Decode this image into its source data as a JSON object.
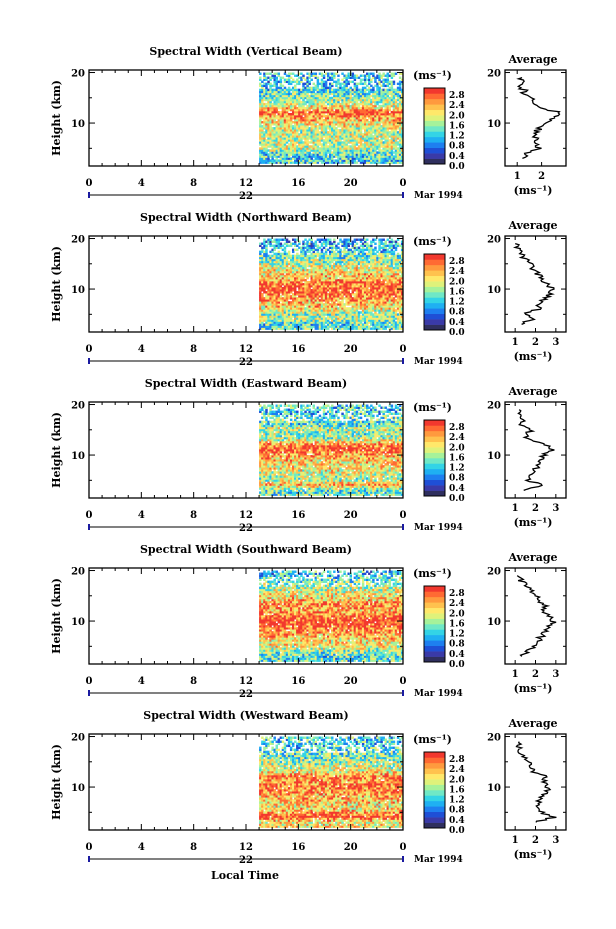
{
  "figure": {
    "xlabel": "Local Time",
    "date_label": "Mar 1994",
    "day_label": "22",
    "cbar_unit": "(ms⁻¹)",
    "avg_title": "Average",
    "avg_xlabel": "(ms⁻¹)"
  },
  "chart_data": [
    {
      "type": "heatmap",
      "title": "Spectral Width (Vertical Beam)",
      "ylabel": "Height (km)",
      "xlabel": "Local Time",
      "xlim": [
        0,
        24
      ],
      "ylim": [
        1.5,
        20.5
      ],
      "xticks": [
        "0",
        "4",
        "8",
        "12",
        "16",
        "20",
        "0"
      ],
      "yticks": [
        "20",
        "10"
      ],
      "data_start_hour": 13,
      "colorbar": {
        "label": "(ms⁻¹)",
        "ticks": [
          "2.8",
          "2.4",
          "2.0",
          "1.6",
          "1.2",
          "0.8",
          "0.4",
          "0.0"
        ],
        "range": [
          0.0,
          3.0
        ]
      },
      "average_profile": {
        "title": "Average",
        "xlabel": "(ms⁻¹)",
        "xlim": [
          0.5,
          3.0
        ],
        "xticks": [
          "1",
          "2"
        ],
        "height": [
          3,
          4,
          5,
          6,
          7,
          8,
          9,
          10,
          11,
          12,
          13,
          14,
          15,
          16,
          17,
          18,
          19
        ],
        "width": [
          1.2,
          1.4,
          1.9,
          1.7,
          1.8,
          1.7,
          1.9,
          2.1,
          2.4,
          2.8,
          2.0,
          1.7,
          1.5,
          1.3,
          1.2,
          1.1,
          1.2
        ]
      }
    },
    {
      "type": "heatmap",
      "title": "Spectral Width (Northward Beam)",
      "ylabel": "Height (km)",
      "xlabel": "Local Time",
      "xlim": [
        0,
        24
      ],
      "ylim": [
        1.5,
        20.5
      ],
      "xticks": [
        "0",
        "4",
        "8",
        "12",
        "16",
        "20",
        "0"
      ],
      "yticks": [
        "20",
        "10"
      ],
      "data_start_hour": 13,
      "colorbar": {
        "label": "(ms⁻¹)",
        "ticks": [
          "2.8",
          "2.4",
          "2.0",
          "1.6",
          "1.2",
          "0.8",
          "0.4",
          "0.0"
        ],
        "range": [
          0.0,
          3.0
        ]
      },
      "average_profile": {
        "title": "Average",
        "xlabel": "(ms⁻¹)",
        "xlim": [
          0.5,
          3.5
        ],
        "xticks": [
          "1",
          "2",
          "3"
        ],
        "height": [
          3,
          4,
          5,
          6,
          7,
          8,
          9,
          10,
          11,
          12,
          13,
          14,
          15,
          16,
          17,
          18,
          19
        ],
        "width": [
          1.3,
          1.8,
          1.5,
          2.1,
          2.2,
          2.4,
          2.7,
          2.8,
          2.6,
          2.3,
          2.1,
          1.9,
          1.7,
          1.5,
          1.3,
          1.1,
          1.0
        ]
      }
    },
    {
      "type": "heatmap",
      "title": "Spectral Width (Eastward Beam)",
      "ylabel": "Height (km)",
      "xlabel": "Local Time",
      "xlim": [
        0,
        24
      ],
      "ylim": [
        1.5,
        20.5
      ],
      "xticks": [
        "0",
        "4",
        "8",
        "12",
        "16",
        "20",
        "0"
      ],
      "yticks": [
        "20",
        "10"
      ],
      "data_start_hour": 13,
      "colorbar": {
        "label": "(ms⁻¹)",
        "ticks": [
          "2.8",
          "2.4",
          "2.0",
          "1.6",
          "1.2",
          "0.8",
          "0.4",
          "0.0"
        ],
        "range": [
          0.0,
          3.0
        ]
      },
      "average_profile": {
        "title": "Average",
        "xlabel": "(ms⁻¹)",
        "xlim": [
          0.5,
          3.5
        ],
        "xticks": [
          "1",
          "2",
          "3"
        ],
        "height": [
          3,
          4,
          5,
          6,
          7,
          8,
          9,
          10,
          11,
          12,
          13,
          14,
          15,
          16,
          17,
          18,
          19
        ],
        "width": [
          1.4,
          2.3,
          1.6,
          1.8,
          2.0,
          2.1,
          2.2,
          2.4,
          2.9,
          2.5,
          1.7,
          1.5,
          1.8,
          1.3,
          1.5,
          1.1,
          1.2
        ]
      }
    },
    {
      "type": "heatmap",
      "title": "Spectral Width (Southward Beam)",
      "ylabel": "Height (km)",
      "xlabel": "Local Time",
      "xlim": [
        0,
        24
      ],
      "ylim": [
        1.5,
        20.5
      ],
      "xticks": [
        "0",
        "4",
        "8",
        "12",
        "16",
        "20",
        "0"
      ],
      "yticks": [
        "20",
        "10"
      ],
      "data_start_hour": 13,
      "colorbar": {
        "label": "(ms⁻¹)",
        "ticks": [
          "2.8",
          "2.4",
          "2.0",
          "1.6",
          "1.2",
          "0.8",
          "0.4",
          "0.0"
        ],
        "range": [
          0.0,
          3.0
        ]
      },
      "average_profile": {
        "title": "Average",
        "xlabel": "(ms⁻¹)",
        "xlim": [
          0.5,
          3.5
        ],
        "xticks": [
          "1",
          "2",
          "3"
        ],
        "height": [
          3,
          4,
          5,
          6,
          7,
          8,
          9,
          10,
          11,
          12,
          13,
          14,
          15,
          16,
          17,
          18,
          19
        ],
        "width": [
          1.3,
          1.6,
          2.0,
          2.1,
          2.3,
          2.5,
          2.7,
          2.9,
          2.6,
          2.3,
          2.6,
          2.2,
          2.0,
          1.8,
          1.6,
          1.3,
          1.1
        ]
      }
    },
    {
      "type": "heatmap",
      "title": "Spectral Width (Westward Beam)",
      "ylabel": "Height (km)",
      "xlabel": "Local Time",
      "xlim": [
        0,
        24
      ],
      "ylim": [
        1.5,
        20.5
      ],
      "xticks": [
        "0",
        "4",
        "8",
        "12",
        "16",
        "20",
        "0"
      ],
      "yticks": [
        "20",
        "10"
      ],
      "data_start_hour": 13,
      "colorbar": {
        "label": "(ms⁻¹)",
        "ticks": [
          "2.8",
          "2.4",
          "2.0",
          "1.6",
          "1.2",
          "0.8",
          "0.4",
          "0.0"
        ],
        "range": [
          0.0,
          3.0
        ]
      },
      "average_profile": {
        "title": "Average",
        "xlabel": "(ms⁻¹)",
        "xlim": [
          0.5,
          3.5
        ],
        "xticks": [
          "1",
          "2",
          "3"
        ],
        "height": [
          3,
          4,
          5,
          6,
          7,
          8,
          9,
          10,
          11,
          12,
          13,
          14,
          15,
          16,
          17,
          18,
          19
        ],
        "width": [
          2.0,
          2.9,
          2.3,
          2.0,
          2.2,
          2.3,
          2.5,
          2.6,
          2.4,
          2.6,
          1.9,
          1.8,
          1.6,
          1.4,
          1.3,
          1.2,
          1.2
        ]
      }
    }
  ]
}
